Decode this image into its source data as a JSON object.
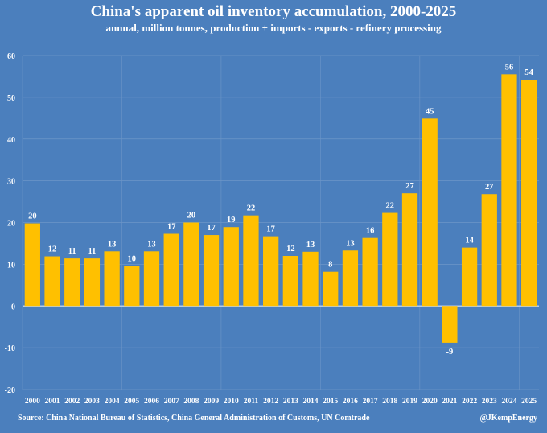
{
  "chart_data": {
    "type": "bar",
    "title": "China's apparent oil inventory accumulation, 2000-2025",
    "subtitle": "annual, million tonnes, production + imports - exports - refinery processing",
    "categories": [
      "2000",
      "2001",
      "2002",
      "2003",
      "2004",
      "2005",
      "2006",
      "2007",
      "2008",
      "2009",
      "2010",
      "2011",
      "2012",
      "2013",
      "2014",
      "2015",
      "2016",
      "2017",
      "2018",
      "2019",
      "2020",
      "2021",
      "2022",
      "2023",
      "2024",
      "2025"
    ],
    "values": [
      19.8,
      11.9,
      11.4,
      11.4,
      13.1,
      9.6,
      13.1,
      17.3,
      20.0,
      17.0,
      18.9,
      21.7,
      16.7,
      12.0,
      13.0,
      8.2,
      13.3,
      16.3,
      22.3,
      27.0,
      44.9,
      -8.8,
      14.0,
      26.8,
      55.5,
      54.2
    ],
    "data_labels": [
      "20",
      "12",
      "11",
      "11",
      "13",
      "10",
      "13",
      "17",
      "20",
      "17",
      "19",
      "22",
      "17",
      "12",
      "13",
      "8",
      "13",
      "16",
      "22",
      "27",
      "45",
      "-9",
      "14",
      "27",
      "56",
      "54"
    ],
    "ylim": [
      -20,
      60
    ],
    "yticks": [
      -20,
      -10,
      0,
      10,
      20,
      30,
      40,
      50,
      60
    ],
    "grid": true,
    "bar_color": "#ffc000",
    "background_color": "#4b7fbd"
  },
  "footer": {
    "source": "Source: China National Bureau of Statistics, China General Administration of Customs, UN Comtrade",
    "credit": "@JKempEnergy"
  }
}
